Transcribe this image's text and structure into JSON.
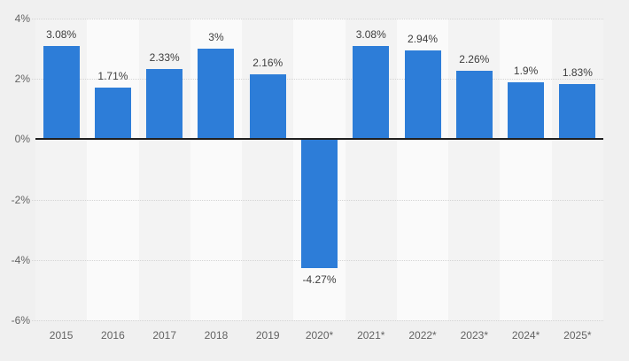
{
  "chart_data": {
    "type": "bar",
    "categories": [
      "2015",
      "2016",
      "2017",
      "2018",
      "2019",
      "2020*",
      "2021*",
      "2022*",
      "2023*",
      "2024*",
      "2025*"
    ],
    "values": [
      3.08,
      1.71,
      2.33,
      3,
      2.16,
      -4.27,
      3.08,
      2.94,
      2.26,
      1.9,
      1.83
    ],
    "value_labels": [
      "3.08%",
      "1.71%",
      "2.33%",
      "3%",
      "2.16%",
      "-4.27%",
      "3.08%",
      "2.94%",
      "2.26%",
      "1.9%",
      "1.83%"
    ],
    "title": "",
    "xlabel": "",
    "ylabel": "",
    "ylim": [
      -6,
      4
    ],
    "yticks": [
      4,
      2,
      0,
      -2,
      -4,
      -6
    ],
    "ytick_labels": [
      "4%",
      "2%",
      "0%",
      "-2%",
      "-4%",
      "-6%"
    ],
    "grid": true,
    "legend": false
  },
  "colors": {
    "bar": "#2d7dd8",
    "background": "#f0f0f0",
    "band_a": "#f3f3f3",
    "band_b": "#fafafa",
    "gridline": "#d4d4d4",
    "zero_line": "#1f1f1f",
    "value_label_text": "#3d3d3d",
    "axis_text": "#636363"
  }
}
